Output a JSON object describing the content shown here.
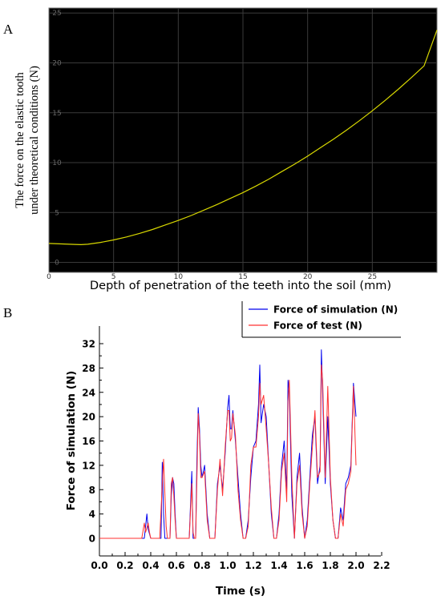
{
  "chart_data": [
    {
      "panel_label": "A",
      "type": "line",
      "xlabel": "Depth of penetration of the teeth into the soil (mm)",
      "ylabel_lines": [
        "The force on the elastic tooth",
        "under theoretical conditions (N)"
      ],
      "xlim": [
        0,
        30
      ],
      "ylim": [
        -1,
        25.5
      ],
      "x_ticks": [
        0,
        5,
        10,
        15,
        20,
        25
      ],
      "y_ticks": [
        0,
        5,
        10,
        15,
        20,
        25
      ],
      "grid": true,
      "background_color": "#000000",
      "grid_color": "#3a3a3a",
      "line_color": "#d8d800",
      "series": [
        {
          "x": [
            0,
            1,
            2,
            2.5,
            3,
            4,
            5,
            6,
            7,
            8,
            9,
            10,
            11,
            12,
            13,
            14,
            15,
            16,
            17,
            18,
            19,
            20,
            21,
            22,
            23,
            24,
            25,
            26,
            27,
            28,
            29,
            30
          ],
          "values": [
            1.9,
            1.85,
            1.8,
            1.78,
            1.82,
            2.0,
            2.25,
            2.55,
            2.9,
            3.3,
            3.75,
            4.2,
            4.7,
            5.25,
            5.8,
            6.4,
            7.0,
            7.65,
            8.35,
            9.1,
            9.85,
            10.65,
            11.5,
            12.35,
            13.25,
            14.2,
            15.2,
            16.25,
            17.35,
            18.5,
            19.7,
            23.3
          ]
        }
      ]
    },
    {
      "panel_label": "B",
      "type": "line",
      "xlabel": "Time (s)",
      "ylabel": "Force of simulation (N)",
      "xlim": [
        0,
        2.2
      ],
      "ylim": [
        -2,
        34
      ],
      "x_ticks": [
        "0.0",
        "0.2",
        "0.4",
        "0.6",
        "0.8",
        "1.0",
        "1.2",
        "1.4",
        "1.6",
        "1.8",
        "2.0",
        "2.2"
      ],
      "y_ticks": [
        "0",
        "4",
        "8",
        "12",
        "16",
        "20",
        "24",
        "28",
        "32"
      ],
      "legend": "top-right",
      "series": [
        {
          "name": "Force of simulation (N)",
          "color": "#0000ee",
          "x": [
            0,
            0.35,
            0.36,
            0.37,
            0.38,
            0.4,
            0.42,
            0.47,
            0.48,
            0.49,
            0.5,
            0.51,
            0.53,
            0.55,
            0.56,
            0.57,
            0.58,
            0.59,
            0.6,
            0.62,
            0.64,
            0.7,
            0.72,
            0.73,
            0.74,
            0.75,
            0.76,
            0.77,
            0.78,
            0.79,
            0.8,
            0.82,
            0.84,
            0.86,
            0.88,
            0.9,
            0.92,
            0.94,
            0.96,
            0.98,
            1.0,
            1.01,
            1.02,
            1.03,
            1.04,
            1.06,
            1.08,
            1.1,
            1.12,
            1.14,
            1.16,
            1.18,
            1.2,
            1.22,
            1.24,
            1.25,
            1.26,
            1.28,
            1.3,
            1.32,
            1.34,
            1.36,
            1.38,
            1.4,
            1.42,
            1.44,
            1.46,
            1.47,
            1.48,
            1.5,
            1.52,
            1.54,
            1.56,
            1.58,
            1.6,
            1.62,
            1.64,
            1.66,
            1.68,
            1.7,
            1.72,
            1.73,
            1.74,
            1.76,
            1.78,
            1.8,
            1.82,
            1.84,
            1.86,
            1.88,
            1.9,
            1.92,
            1.94,
            1.96,
            1.98,
            2.0
          ],
          "values": [
            0,
            0,
            2,
            4,
            1.5,
            0,
            0,
            0,
            0,
            12.5,
            4,
            0,
            0,
            0,
            7,
            10,
            9,
            4,
            0,
            0,
            0,
            0,
            11,
            0,
            0,
            0,
            13,
            21.5,
            18,
            12,
            10,
            12,
            4,
            0,
            0,
            0,
            9,
            12,
            8,
            14,
            21.5,
            23.5,
            18,
            18,
            21,
            16,
            10,
            4,
            0,
            0,
            3,
            10,
            15,
            16,
            22,
            28.5,
            19,
            22,
            20,
            12,
            4,
            0,
            0,
            4,
            12,
            16,
            8,
            26,
            24,
            7,
            0,
            10,
            14,
            5,
            0,
            3,
            10,
            17,
            20,
            9,
            12,
            31,
            24,
            9,
            20,
            9,
            3,
            0,
            0,
            5,
            3,
            9,
            10,
            12,
            25.5,
            20
          ]
        },
        {
          "name": "Force of test (N)",
          "color": "#ff3030",
          "x": [
            0,
            0.33,
            0.35,
            0.36,
            0.38,
            0.39,
            0.4,
            0.42,
            0.47,
            0.49,
            0.5,
            0.52,
            0.53,
            0.55,
            0.56,
            0.57,
            0.58,
            0.59,
            0.6,
            0.62,
            0.64,
            0.7,
            0.72,
            0.73,
            0.74,
            0.75,
            0.76,
            0.77,
            0.78,
            0.79,
            0.8,
            0.82,
            0.84,
            0.86,
            0.88,
            0.9,
            0.92,
            0.94,
            0.96,
            0.98,
            1.0,
            1.01,
            1.02,
            1.03,
            1.04,
            1.06,
            1.08,
            1.1,
            1.12,
            1.14,
            1.16,
            1.18,
            1.2,
            1.22,
            1.24,
            1.25,
            1.26,
            1.28,
            1.3,
            1.32,
            1.34,
            1.36,
            1.38,
            1.4,
            1.42,
            1.44,
            1.46,
            1.47,
            1.48,
            1.5,
            1.52,
            1.54,
            1.56,
            1.58,
            1.6,
            1.62,
            1.64,
            1.66,
            1.68,
            1.7,
            1.72,
            1.73,
            1.74,
            1.76,
            1.78,
            1.8,
            1.82,
            1.84,
            1.86,
            1.88,
            1.9,
            1.92,
            1.94,
            1.96,
            1.98,
            2.0
          ],
          "values": [
            0,
            0,
            2.5,
            1,
            2.5,
            1,
            0,
            0,
            0,
            9,
            13,
            2,
            0,
            0,
            9,
            10,
            7,
            3,
            0,
            0,
            0,
            0,
            9,
            1,
            0,
            0,
            10,
            20.5,
            17,
            10,
            10,
            11,
            3,
            0,
            0,
            0,
            8,
            13,
            7,
            15,
            21,
            21,
            16,
            16.5,
            20.5,
            17,
            8,
            3,
            0,
            0,
            2,
            12,
            15,
            15,
            20,
            25.5,
            22,
            23.5,
            18,
            12,
            5,
            0,
            0,
            3,
            11,
            14,
            6,
            22.5,
            26,
            10,
            0,
            9,
            12,
            4,
            0,
            2,
            9,
            15,
            21,
            10,
            11,
            28.5,
            26,
            10,
            25,
            10,
            3,
            0,
            0,
            4,
            2,
            8,
            9,
            11,
            25,
            12
          ]
        }
      ]
    }
  ]
}
